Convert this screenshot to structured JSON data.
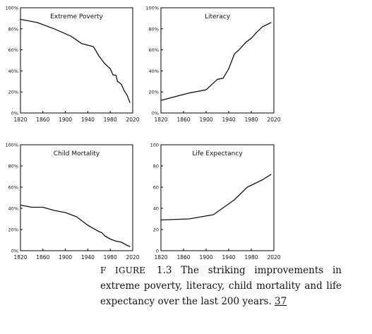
{
  "chart_data": [
    {
      "type": "line",
      "title": "Extreme Poverty",
      "xlabel": "",
      "ylabel": "",
      "xlim": [
        1820,
        2020
      ],
      "ylim": [
        0,
        100
      ],
      "x_ticks": [
        "1820",
        "1860",
        "1900",
        "1940",
        "1980",
        "2020"
      ],
      "y_ticks": [
        "0%",
        "20%",
        "40%",
        "60%",
        "80%",
        "100%"
      ],
      "grid": false,
      "series": [
        {
          "x": [
            1820,
            1850,
            1880,
            1910,
            1929,
            1950,
            1960,
            1970,
            1980,
            1985,
            1990,
            1993,
            1996,
            2000,
            2005,
            2010,
            2015
          ],
          "values": [
            89,
            86,
            80,
            73,
            66,
            63,
            54,
            47,
            42,
            36,
            36,
            30,
            29,
            27,
            21,
            17,
            10
          ]
        }
      ]
    },
    {
      "type": "line",
      "title": "Literacy",
      "xlabel": "",
      "ylabel": "",
      "xlim": [
        1820,
        2020
      ],
      "ylim": [
        0,
        100
      ],
      "x_ticks": [
        "1820",
        "1860",
        "1900",
        "1940",
        "1980",
        "2020"
      ],
      "y_ticks": [
        "0%",
        "20%",
        "40%",
        "60%",
        "80%",
        "100%"
      ],
      "grid": false,
      "series": [
        {
          "x": [
            1820,
            1870,
            1900,
            1920,
            1930,
            1940,
            1950,
            1960,
            1970,
            1980,
            1990,
            2000,
            2015
          ],
          "values": [
            12,
            19,
            22,
            32,
            33,
            42,
            56,
            61,
            67,
            71,
            77,
            82,
            86
          ]
        }
      ]
    },
    {
      "type": "line",
      "title": "Child Mortality",
      "xlabel": "",
      "ylabel": "",
      "xlim": [
        1820,
        2020
      ],
      "ylim": [
        0,
        100
      ],
      "x_ticks": [
        "1820",
        "1860",
        "1900",
        "1940",
        "1980",
        "2020"
      ],
      "y_ticks": [
        "0%",
        "20%",
        "40%",
        "60%",
        "80%",
        "100%"
      ],
      "grid": false,
      "series": [
        {
          "x": [
            1820,
            1840,
            1860,
            1880,
            1900,
            1920,
            1940,
            1960,
            1965,
            1970,
            1980,
            1990,
            2000,
            2010,
            2015
          ],
          "values": [
            43,
            41,
            41,
            38,
            36,
            32,
            24,
            18,
            17,
            14,
            11,
            9,
            8,
            5,
            4
          ]
        }
      ]
    },
    {
      "type": "line",
      "title": "Life Expectancy",
      "xlabel": "",
      "ylabel": "",
      "xlim": [
        1820,
        2020
      ],
      "ylim": [
        0,
        100
      ],
      "x_ticks": [
        "1820",
        "1860",
        "1900",
        "1940",
        "1980",
        "2020"
      ],
      "y_ticks": [
        "0",
        "20",
        "40",
        "60",
        "80",
        "100"
      ],
      "grid": false,
      "series": [
        {
          "x": [
            1820,
            1870,
            1913,
            1950,
            1973,
            2000,
            2015
          ],
          "values": [
            29,
            30,
            34,
            48,
            60,
            67,
            72
          ]
        }
      ]
    }
  ],
  "caption": {
    "figure_label": "F IGURE",
    "line1": "1.3   The   striking   improvements   in",
    "line2": "extreme  poverty,  literacy, child mortality and   life",
    "line3": "expectancy  over  the  last 200  years.",
    "ref": "37"
  }
}
